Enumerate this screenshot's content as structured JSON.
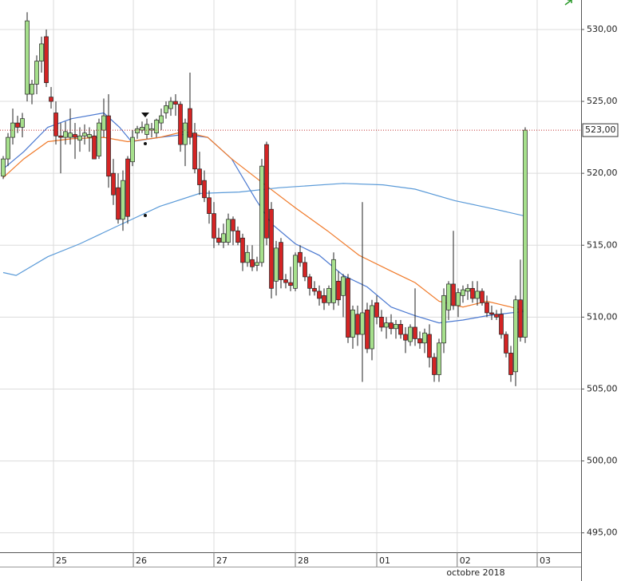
{
  "chart_data": {
    "type": "candlestick",
    "xlim": [
      -0.67,
      120.67
    ],
    "ylim": [
      493.65,
      532.05
    ],
    "yticks": [
      {
        "value": 495,
        "label": "495,00"
      },
      {
        "value": 500,
        "label": "500,00"
      },
      {
        "value": 505,
        "label": "505,00"
      },
      {
        "value": 510,
        "label": "510,00"
      },
      {
        "value": 515,
        "label": "515,00"
      },
      {
        "value": 520,
        "label": "520,00"
      },
      {
        "value": 525,
        "label": "525,00"
      },
      {
        "value": 530,
        "label": "530,00"
      }
    ],
    "xticks": [
      {
        "value": 10.5,
        "label": "25"
      },
      {
        "value": 27.17,
        "label": "26"
      },
      {
        "value": 44,
        "label": "27"
      },
      {
        "value": 61,
        "label": "28"
      },
      {
        "value": 78,
        "label": "01"
      },
      {
        "value": 94.8,
        "label": "02"
      },
      {
        "value": 111.5,
        "label": "03"
      }
    ],
    "month_label": "octobre 2018",
    "grid": true,
    "up_color": "#a6e08c",
    "down_color": "#d42424",
    "last_price": {
      "value": 523,
      "label": "523,00"
    },
    "candles": [
      [
        519.8,
        521.2,
        519.6,
        521.0
      ],
      [
        521.0,
        522.8,
        520.5,
        522.5
      ],
      [
        522.5,
        524.5,
        522.0,
        523.5
      ],
      [
        523.5,
        524.0,
        522.8,
        523.2
      ],
      [
        523.2,
        524.2,
        522.5,
        523.8
      ],
      [
        525.5,
        531.2,
        525.0,
        530.6
      ],
      [
        525.5,
        526.5,
        524.8,
        526.2
      ],
      [
        526.2,
        528.2,
        525.5,
        527.8
      ],
      [
        527.8,
        529.5,
        527.0,
        529.0
      ],
      [
        529.5,
        530.0,
        526.0,
        526.3
      ],
      [
        525.3,
        526.0,
        524.5,
        525.0
      ],
      [
        524.2,
        525.0,
        522.0,
        522.6
      ],
      [
        522.6,
        523.5,
        520.0,
        522.5
      ],
      [
        522.5,
        523.6,
        522.0,
        522.9
      ],
      [
        522.5,
        524.5,
        522.0,
        522.8
      ],
      [
        522.7,
        523.5,
        521.0,
        522.5
      ],
      [
        522.3,
        523.2,
        521.5,
        522.6
      ],
      [
        522.6,
        523.4,
        522.0,
        522.8
      ],
      [
        522.5,
        523.2,
        521.5,
        522.7
      ],
      [
        522.6,
        523.0,
        521.0,
        521.0
      ],
      [
        521.2,
        523.8,
        521.0,
        523.5
      ],
      [
        523.0,
        525.2,
        522.5,
        524.0
      ],
      [
        524.0,
        525.5,
        519.0,
        519.8
      ],
      [
        520.0,
        521.0,
        517.8,
        518.5
      ],
      [
        519.0,
        520.0,
        516.5,
        516.8
      ],
      [
        516.8,
        520.2,
        516.0,
        519.5
      ],
      [
        521.0,
        521.2,
        516.5,
        517.0
      ],
      [
        520.8,
        523.0,
        520.5,
        522.5
      ],
      [
        522.8,
        523.3,
        522.4,
        523.1
      ],
      [
        523.0,
        523.6,
        522.8,
        523.2
      ],
      [
        522.7,
        523.8,
        522.4,
        523.4
      ],
      [
        523.0,
        523.5,
        522.5,
        523.1
      ],
      [
        522.8,
        523.8,
        522.5,
        523.7
      ],
      [
        523.5,
        524.5,
        523.0,
        524.0
      ],
      [
        524.2,
        525.0,
        523.8,
        524.7
      ],
      [
        524.5,
        525.3,
        524.0,
        525.0
      ],
      [
        525.0,
        525.5,
        524.0,
        524.8
      ],
      [
        524.8,
        525.0,
        521.5,
        522.0
      ],
      [
        522.0,
        523.8,
        520.5,
        523.5
      ],
      [
        524.5,
        527.0,
        522.0,
        522.5
      ],
      [
        522.8,
        523.5,
        520.0,
        520.3
      ],
      [
        520.3,
        521.5,
        518.5,
        519.2
      ],
      [
        519.5,
        520.2,
        518.0,
        518.3
      ],
      [
        518.3,
        518.8,
        516.5,
        517.2
      ],
      [
        517.2,
        518.0,
        514.8,
        515.5
      ],
      [
        515.5,
        516.2,
        515.0,
        515.2
      ],
      [
        515.2,
        516.5,
        514.8,
        515.8
      ],
      [
        515.2,
        517.2,
        515.0,
        516.8
      ],
      [
        516.8,
        517.0,
        515.0,
        516.0
      ],
      [
        516.0,
        516.3,
        515.0,
        515.2
      ],
      [
        515.5,
        515.8,
        513.2,
        513.8
      ],
      [
        513.8,
        515.0,
        513.5,
        514.5
      ],
      [
        514.0,
        515.0,
        513.2,
        513.5
      ],
      [
        513.6,
        514.2,
        513.2,
        513.8
      ],
      [
        513.8,
        521.0,
        513.5,
        520.5
      ],
      [
        522.0,
        522.2,
        515.0,
        515.5
      ],
      [
        517.5,
        518.0,
        511.3,
        512.0
      ],
      [
        512.5,
        515.3,
        511.5,
        514.8
      ],
      [
        515.2,
        515.5,
        512.0,
        512.6
      ],
      [
        512.6,
        513.0,
        512.0,
        512.4
      ],
      [
        512.4,
        513.5,
        511.8,
        512.2
      ],
      [
        512.0,
        514.5,
        511.8,
        514.3
      ],
      [
        514.5,
        515.0,
        513.5,
        513.8
      ],
      [
        513.8,
        514.2,
        512.5,
        512.8
      ],
      [
        512.8,
        513.0,
        511.5,
        512.0
      ],
      [
        512.0,
        512.5,
        511.5,
        511.8
      ],
      [
        511.8,
        512.2,
        510.8,
        511.3
      ],
      [
        511.5,
        512.0,
        510.5,
        511.0
      ],
      [
        511.0,
        512.2,
        510.8,
        512.0
      ],
      [
        511.0,
        514.5,
        510.5,
        514.0
      ],
      [
        512.5,
        513.2,
        510.8,
        511.2
      ],
      [
        511.5,
        513.0,
        510.0,
        512.8
      ],
      [
        512.7,
        513.0,
        508.2,
        508.6
      ],
      [
        508.6,
        510.8,
        507.8,
        510.5
      ],
      [
        510.2,
        510.8,
        508.0,
        508.8
      ],
      [
        508.8,
        518.0,
        505.5,
        510.3
      ],
      [
        510.5,
        511.0,
        507.5,
        507.8
      ],
      [
        507.8,
        511.2,
        507.0,
        510.8
      ],
      [
        511.0,
        511.5,
        509.5,
        510.0
      ],
      [
        510.0,
        510.5,
        509.0,
        509.3
      ],
      [
        509.3,
        510.0,
        508.5,
        509.6
      ],
      [
        509.6,
        510.2,
        508.8,
        509.2
      ],
      [
        509.2,
        509.8,
        508.5,
        509.5
      ],
      [
        509.5,
        509.8,
        508.5,
        508.8
      ],
      [
        508.8,
        509.3,
        507.5,
        508.4
      ],
      [
        508.3,
        509.5,
        508.0,
        509.3
      ],
      [
        509.3,
        512.0,
        508.0,
        508.5
      ],
      [
        508.5,
        509.0,
        507.8,
        508.2
      ],
      [
        508.2,
        509.2,
        507.5,
        508.9
      ],
      [
        508.8,
        509.5,
        506.5,
        507.2
      ],
      [
        507.2,
        507.5,
        505.5,
        506.0
      ],
      [
        506.0,
        508.5,
        505.5,
        508.2
      ],
      [
        508.2,
        512.0,
        507.5,
        511.5
      ],
      [
        510.5,
        512.5,
        509.8,
        512.3
      ],
      [
        512.3,
        516.0,
        510.5,
        510.8
      ],
      [
        510.8,
        512.0,
        510.0,
        511.7
      ],
      [
        511.5,
        512.2,
        511.0,
        511.9
      ],
      [
        511.8,
        512.3,
        511.2,
        512.0
      ],
      [
        512.0,
        512.5,
        511.0,
        511.3
      ],
      [
        511.3,
        512.5,
        510.8,
        511.8
      ],
      [
        511.8,
        512.0,
        510.8,
        511.0
      ],
      [
        511.0,
        511.5,
        510.0,
        510.3
      ],
      [
        510.3,
        510.8,
        509.8,
        510.2
      ],
      [
        510.2,
        510.5,
        509.8,
        510.0
      ],
      [
        510.2,
        510.6,
        508.5,
        508.8
      ],
      [
        508.8,
        509.0,
        507.2,
        507.5
      ],
      [
        507.5,
        508.0,
        505.5,
        506.0
      ],
      [
        506.2,
        511.5,
        505.2,
        511.2
      ],
      [
        511.2,
        514.0,
        508.3,
        508.6
      ],
      [
        508.6,
        523.2,
        508.2,
        523.0
      ]
    ],
    "series": [
      {
        "color": "#4a78d0",
        "x": [
          0,
          4.3,
          9.3,
          14.3,
          21,
          24.3,
          26.8,
          32.7,
          37.7,
          42.7,
          47.7,
          52.7,
          56,
          61,
          66,
          71,
          76,
          81,
          86,
          91,
          96,
          101,
          106,
          109.3
        ],
        "values": [
          520.3,
          521.5,
          523.2,
          523.8,
          524.2,
          523.2,
          522.2,
          522.5,
          522.7,
          522.5,
          521.0,
          518.2,
          516.5,
          515.1,
          514.3,
          512.9,
          512.1,
          510.7,
          510.1,
          509.6,
          509.8,
          510.1,
          510.3,
          510.4
        ]
      },
      {
        "color": "#f07a2a",
        "x": [
          0,
          4.3,
          9.3,
          14.3,
          21,
          26,
          32.7,
          37.7,
          42.7,
          47.7,
          54.3,
          61,
          67.7,
          74.3,
          81,
          86,
          91,
          96,
          101,
          106,
          109.3
        ],
        "values": [
          519.7,
          521.0,
          522.2,
          522.4,
          522.5,
          522.2,
          522.5,
          522.9,
          522.5,
          521.0,
          519.3,
          517.6,
          516.0,
          514.3,
          513.2,
          512.4,
          511.1,
          510.7,
          511.1,
          510.7,
          510.4
        ]
      },
      {
        "color": "#5a9ad8",
        "x": [
          0,
          2.7,
          9.3,
          16,
          24.3,
          32.7,
          41,
          49.3,
          57.7,
          71,
          79.3,
          86,
          94.3,
          102.7,
          109.3
        ],
        "values": [
          513.1,
          512.9,
          514.2,
          515.1,
          516.4,
          517.7,
          518.6,
          518.7,
          519.0,
          519.3,
          519.2,
          518.9,
          518.1,
          517.5,
          517.0
        ]
      }
    ]
  }
}
